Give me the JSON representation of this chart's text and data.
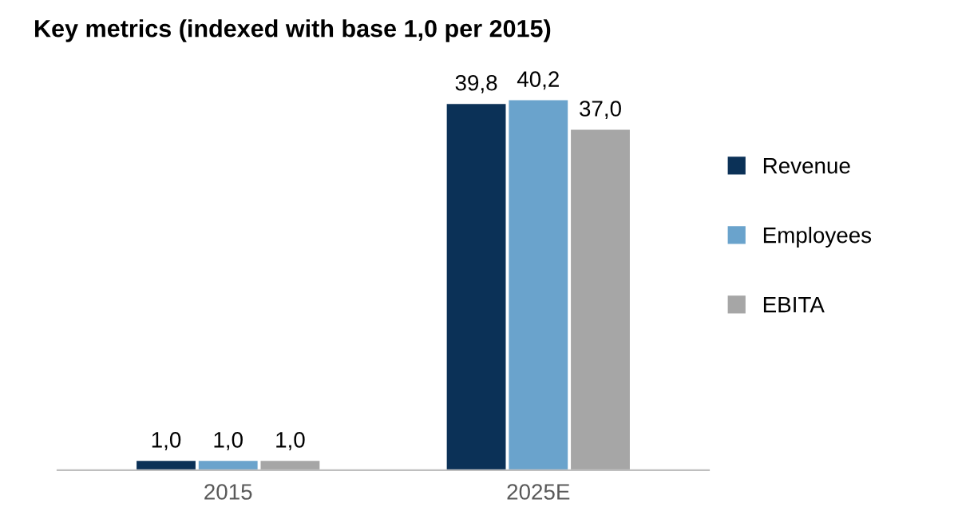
{
  "chart_data": {
    "type": "bar",
    "title": "Key metrics (indexed with base 1,0 per 2015)",
    "categories": [
      "2015",
      "2025E"
    ],
    "series": [
      {
        "name": "Revenue",
        "color": "#0b3157",
        "values": [
          1.0,
          39.8
        ],
        "value_labels": [
          "1,0",
          "39,8"
        ]
      },
      {
        "name": "Employees",
        "color": "#6aa3cc",
        "values": [
          1.0,
          40.2
        ],
        "value_labels": [
          "1,0",
          "40,2"
        ]
      },
      {
        "name": "EBITA",
        "color": "#a6a6a6",
        "values": [
          1.0,
          37.0
        ],
        "value_labels": [
          "1,0",
          "37,0"
        ]
      }
    ],
    "legend": "right",
    "grid": false
  }
}
